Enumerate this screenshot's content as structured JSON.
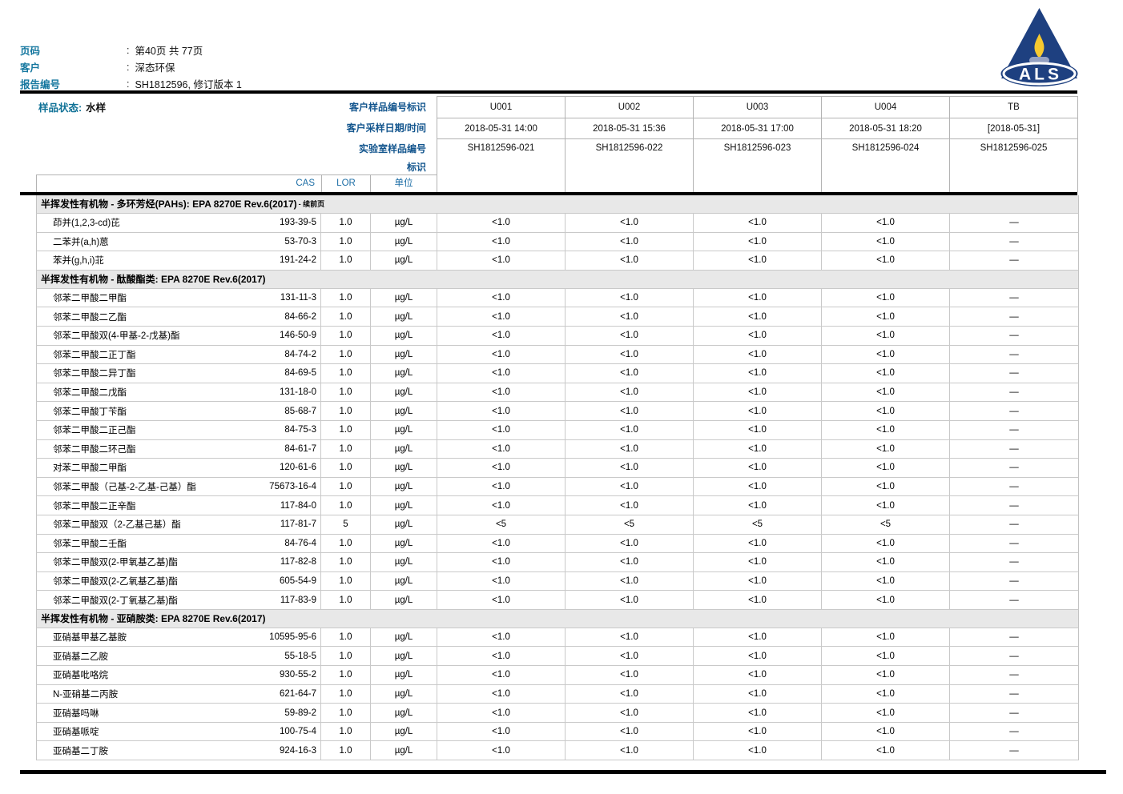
{
  "header": {
    "separator": ":",
    "logo_text": "ALS",
    "fields": [
      {
        "label": "页码",
        "value": "第40页 共 77页"
      },
      {
        "label": "客户",
        "value": "深态环保"
      },
      {
        "label": "报告编号",
        "value": "SH1812596, 修订版本 1"
      }
    ]
  },
  "sample_info": {
    "status_label": "样品状态:",
    "status_value": "水样",
    "row_labels": [
      "客户样品编号标识",
      "客户采样日期/时间",
      "实验室样品编号",
      "标识"
    ],
    "columns": [
      {
        "id": "U001",
        "datetime": "2018-05-31 14:00",
        "lab_id": "SH1812596-021"
      },
      {
        "id": "U002",
        "datetime": "2018-05-31 15:36",
        "lab_id": "SH1812596-022"
      },
      {
        "id": "U003",
        "datetime": "2018-05-31 17:00",
        "lab_id": "SH1812596-023"
      },
      {
        "id": "U004",
        "datetime": "2018-05-31 18:20",
        "lab_id": "SH1812596-024"
      },
      {
        "id": "TB",
        "datetime": "[2018-05-31]",
        "lab_id": "SH1812596-025"
      }
    ]
  },
  "table": {
    "col_headers": [
      "CAS",
      "LOR",
      "单位"
    ],
    "sections": [
      {
        "title": "半挥发性有机物 - 多环芳烃(PAHs): EPA 8270E Rev.6(2017)",
        "suffix": "- 续前页",
        "rows": [
          {
            "name": "茚并(1,2,3-cd)芘",
            "cas": "193-39-5",
            "lor": "1.0",
            "unit": "µg/L",
            "values": [
              "<1.0",
              "<1.0",
              "<1.0",
              "<1.0",
              "—"
            ]
          },
          {
            "name": "二苯并(a,h)蒽",
            "cas": "53-70-3",
            "lor": "1.0",
            "unit": "µg/L",
            "values": [
              "<1.0",
              "<1.0",
              "<1.0",
              "<1.0",
              "—"
            ]
          },
          {
            "name": "苯并(g,h,i)苝",
            "cas": "191-24-2",
            "lor": "1.0",
            "unit": "µg/L",
            "values": [
              "<1.0",
              "<1.0",
              "<1.0",
              "<1.0",
              "—"
            ]
          }
        ]
      },
      {
        "title": "半挥发性有机物 - 酞酸酯类: EPA 8270E Rev.6(2017)",
        "suffix": "",
        "rows": [
          {
            "name": "邻苯二甲酸二甲酯",
            "cas": "131-11-3",
            "lor": "1.0",
            "unit": "µg/L",
            "values": [
              "<1.0",
              "<1.0",
              "<1.0",
              "<1.0",
              "—"
            ]
          },
          {
            "name": "邻苯二甲酸二乙酯",
            "cas": "84-66-2",
            "lor": "1.0",
            "unit": "µg/L",
            "values": [
              "<1.0",
              "<1.0",
              "<1.0",
              "<1.0",
              "—"
            ]
          },
          {
            "name": "邻苯二甲酸双(4-甲基-2-戊基)酯",
            "cas": "146-50-9",
            "lor": "1.0",
            "unit": "µg/L",
            "values": [
              "<1.0",
              "<1.0",
              "<1.0",
              "<1.0",
              "—"
            ]
          },
          {
            "name": "邻苯二甲酸二正丁酯",
            "cas": "84-74-2",
            "lor": "1.0",
            "unit": "µg/L",
            "values": [
              "<1.0",
              "<1.0",
              "<1.0",
              "<1.0",
              "—"
            ]
          },
          {
            "name": "邻苯二甲酸二异丁酯",
            "cas": "84-69-5",
            "lor": "1.0",
            "unit": "µg/L",
            "values": [
              "<1.0",
              "<1.0",
              "<1.0",
              "<1.0",
              "—"
            ]
          },
          {
            "name": "邻苯二甲酸二戊酯",
            "cas": "131-18-0",
            "lor": "1.0",
            "unit": "µg/L",
            "values": [
              "<1.0",
              "<1.0",
              "<1.0",
              "<1.0",
              "—"
            ]
          },
          {
            "name": "邻苯二甲酸丁苄酯",
            "cas": "85-68-7",
            "lor": "1.0",
            "unit": "µg/L",
            "values": [
              "<1.0",
              "<1.0",
              "<1.0",
              "<1.0",
              "—"
            ]
          },
          {
            "name": "邻苯二甲酸二正己酯",
            "cas": "84-75-3",
            "lor": "1.0",
            "unit": "µg/L",
            "values": [
              "<1.0",
              "<1.0",
              "<1.0",
              "<1.0",
              "—"
            ]
          },
          {
            "name": "邻苯二甲酸二环己酯",
            "cas": "84-61-7",
            "lor": "1.0",
            "unit": "µg/L",
            "values": [
              "<1.0",
              "<1.0",
              "<1.0",
              "<1.0",
              "—"
            ]
          },
          {
            "name": "对苯二甲酸二甲酯",
            "cas": "120-61-6",
            "lor": "1.0",
            "unit": "µg/L",
            "values": [
              "<1.0",
              "<1.0",
              "<1.0",
              "<1.0",
              "—"
            ]
          },
          {
            "name": "邻苯二甲酸（己基-2-乙基-己基）酯",
            "cas": "75673-16-4",
            "lor": "1.0",
            "unit": "µg/L",
            "values": [
              "<1.0",
              "<1.0",
              "<1.0",
              "<1.0",
              "—"
            ]
          },
          {
            "name": "邻苯二甲酸二正辛酯",
            "cas": "117-84-0",
            "lor": "1.0",
            "unit": "µg/L",
            "values": [
              "<1.0",
              "<1.0",
              "<1.0",
              "<1.0",
              "—"
            ]
          },
          {
            "name": "邻苯二甲酸双（2-乙基己基）酯",
            "cas": "117-81-7",
            "lor": "5",
            "unit": "µg/L",
            "values": [
              "<5",
              "<5",
              "<5",
              "<5",
              "—"
            ]
          },
          {
            "name": "邻苯二甲酸二壬酯",
            "cas": "84-76-4",
            "lor": "1.0",
            "unit": "µg/L",
            "values": [
              "<1.0",
              "<1.0",
              "<1.0",
              "<1.0",
              "—"
            ]
          },
          {
            "name": "邻苯二甲酸双(2-甲氧基乙基)酯",
            "cas": "117-82-8",
            "lor": "1.0",
            "unit": "µg/L",
            "values": [
              "<1.0",
              "<1.0",
              "<1.0",
              "<1.0",
              "—"
            ]
          },
          {
            "name": "邻苯二甲酸双(2-乙氧基乙基)酯",
            "cas": "605-54-9",
            "lor": "1.0",
            "unit": "µg/L",
            "values": [
              "<1.0",
              "<1.0",
              "<1.0",
              "<1.0",
              "—"
            ]
          },
          {
            "name": "邻苯二甲酸双(2-丁氧基乙基)酯",
            "cas": "117-83-9",
            "lor": "1.0",
            "unit": "µg/L",
            "values": [
              "<1.0",
              "<1.0",
              "<1.0",
              "<1.0",
              "—"
            ]
          }
        ]
      },
      {
        "title": "半挥发性有机物 - 亚硝胺类: EPA 8270E Rev.6(2017)",
        "suffix": "",
        "rows": [
          {
            "name": "亚硝基甲基乙基胺",
            "cas": "10595-95-6",
            "lor": "1.0",
            "unit": "µg/L",
            "values": [
              "<1.0",
              "<1.0",
              "<1.0",
              "<1.0",
              "—"
            ]
          },
          {
            "name": "亚硝基二乙胺",
            "cas": "55-18-5",
            "lor": "1.0",
            "unit": "µg/L",
            "values": [
              "<1.0",
              "<1.0",
              "<1.0",
              "<1.0",
              "—"
            ]
          },
          {
            "name": "亚硝基吡咯烷",
            "cas": "930-55-2",
            "lor": "1.0",
            "unit": "µg/L",
            "values": [
              "<1.0",
              "<1.0",
              "<1.0",
              "<1.0",
              "—"
            ]
          },
          {
            "name": "N-亚硝基二丙胺",
            "cas": "621-64-7",
            "lor": "1.0",
            "unit": "µg/L",
            "values": [
              "<1.0",
              "<1.0",
              "<1.0",
              "<1.0",
              "—"
            ]
          },
          {
            "name": "亚硝基吗啉",
            "cas": "59-89-2",
            "lor": "1.0",
            "unit": "µg/L",
            "values": [
              "<1.0",
              "<1.0",
              "<1.0",
              "<1.0",
              "—"
            ]
          },
          {
            "name": "亚硝基哌啶",
            "cas": "100-75-4",
            "lor": "1.0",
            "unit": "µg/L",
            "values": [
              "<1.0",
              "<1.0",
              "<1.0",
              "<1.0",
              "—"
            ]
          },
          {
            "name": "亚硝基二丁胺",
            "cas": "924-16-3",
            "lor": "1.0",
            "unit": "µg/L",
            "values": [
              "<1.0",
              "<1.0",
              "<1.0",
              "<1.0",
              "—"
            ]
          }
        ]
      }
    ]
  }
}
